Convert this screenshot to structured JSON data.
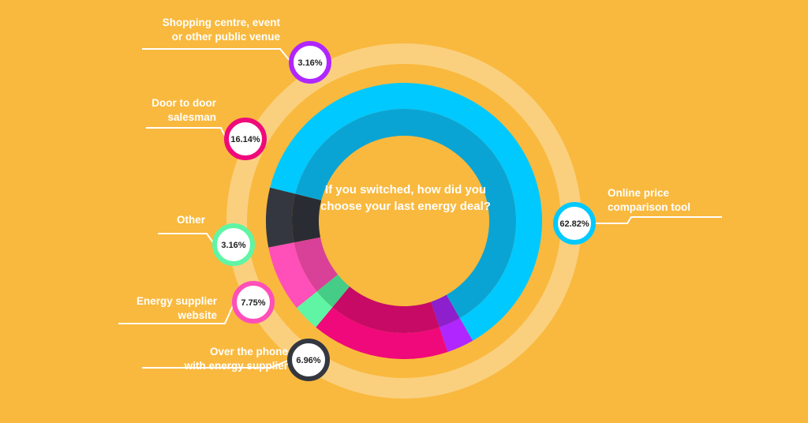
{
  "chart_data": {
    "type": "pie",
    "title": "If you switched, how did you choose your last energy deal?",
    "categories": [
      "Online price comparison tool",
      "Over the phone with energy supplier",
      "Energy supplier website",
      "Other",
      "Door to door salesman",
      "Shopping centre, event or other public venue"
    ],
    "values": [
      62.82,
      6.96,
      7.75,
      3.16,
      16.14,
      3.16
    ],
    "value_labels": [
      "62.82%",
      "6.96%",
      "7.75%",
      "3.16%",
      "16.14%",
      "3.16%"
    ],
    "label_lines": [
      [
        "Online price",
        "comparison tool"
      ],
      [
        "Over the phone",
        "with energy supplier"
      ],
      [
        "Energy supplier",
        "website"
      ],
      [
        "Other"
      ],
      [
        "Door to door",
        "salesman"
      ],
      [
        "Shopping centre, event",
        "or other public venue"
      ]
    ],
    "colors": [
      "#00C9FF",
      "#34373F",
      "#FF4FB8",
      "#5FF5A5",
      "#F0097A",
      "#B026FF"
    ],
    "inner_colors": [
      "#0AA4D4",
      "#2A2C33",
      "#D94098",
      "#45CC86",
      "#C60A66",
      "#8D1FCC"
    ],
    "legend": "none"
  }
}
